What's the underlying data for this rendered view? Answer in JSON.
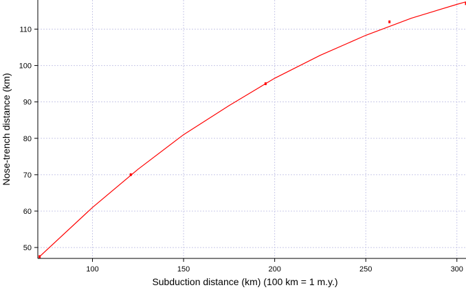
{
  "chart_data": {
    "type": "scatter",
    "xlabel": "Subduction distance (km) (100 km = 1 m.y.)",
    "ylabel": "Nose-trench distance (km)",
    "xlim": [
      70,
      305
    ],
    "ylim": [
      47,
      118
    ],
    "x_ticks": [
      100,
      150,
      200,
      250,
      300
    ],
    "y_ticks": [
      50,
      60,
      70,
      80,
      90,
      100,
      110
    ],
    "grid": true,
    "series": [
      {
        "type": "scatter",
        "color": "#ff0000",
        "points": [
          {
            "x": 71,
            "y": 47.5
          },
          {
            "x": 121,
            "y": 70
          },
          {
            "x": 195,
            "y": 95
          },
          {
            "x": 263,
            "y": 112
          },
          {
            "x": 305,
            "y": 117
          }
        ]
      },
      {
        "type": "line",
        "color": "#ff0000",
        "points": [
          {
            "x": 71,
            "y": 47.5
          },
          {
            "x": 100,
            "y": 61
          },
          {
            "x": 125,
            "y": 71.5
          },
          {
            "x": 150,
            "y": 81
          },
          {
            "x": 175,
            "y": 89
          },
          {
            "x": 200,
            "y": 96.5
          },
          {
            "x": 225,
            "y": 102.8
          },
          {
            "x": 250,
            "y": 108.3
          },
          {
            "x": 275,
            "y": 113
          },
          {
            "x": 300,
            "y": 116.8
          },
          {
            "x": 305,
            "y": 117.5
          }
        ]
      }
    ]
  }
}
